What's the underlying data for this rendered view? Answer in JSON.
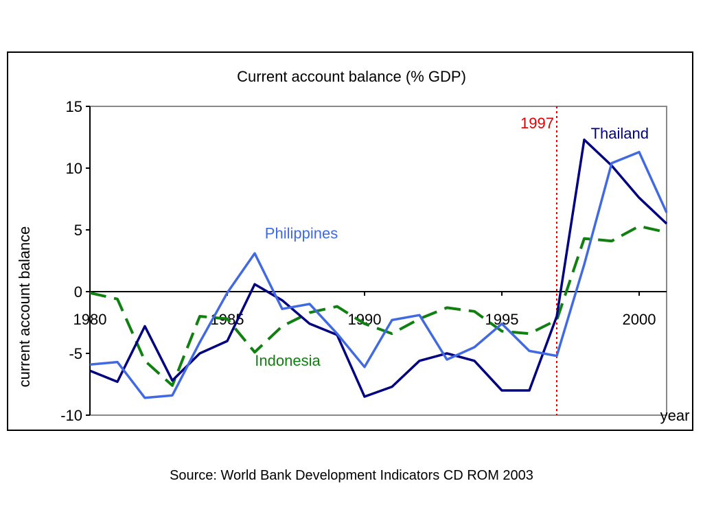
{
  "chart_data": {
    "type": "line",
    "title": "Current account balance (% GDP)",
    "xlabel": "year",
    "ylabel": "current account balance",
    "xlim": [
      1980,
      2001
    ],
    "ylim": [
      -10,
      15
    ],
    "xticks": [
      1980,
      1985,
      1990,
      1995,
      2000
    ],
    "yticks": [
      -10,
      -5,
      0,
      5,
      10,
      15
    ],
    "x": [
      1980,
      1981,
      1982,
      1983,
      1984,
      1985,
      1986,
      1987,
      1988,
      1989,
      1990,
      1991,
      1992,
      1993,
      1994,
      1995,
      1996,
      1997,
      1998,
      1999,
      2000,
      2001
    ],
    "series": [
      {
        "name": "Thailand",
        "color": "#000080",
        "dash": "solid",
        "values": [
          -6.4,
          -7.3,
          -2.8,
          -7.2,
          -5.0,
          -4.0,
          0.6,
          -0.7,
          -2.6,
          -3.5,
          -8.5,
          -7.7,
          -5.6,
          -5.0,
          -5.6,
          -8.0,
          -8.0,
          -2.0,
          12.3,
          10.2,
          7.6,
          5.5
        ]
      },
      {
        "name": "Philippines",
        "color": "#4169E1",
        "dash": "solid",
        "values": [
          -5.9,
          -5.7,
          -8.6,
          -8.4,
          -4.1,
          -0.1,
          3.1,
          -1.4,
          -1.0,
          -3.4,
          -6.1,
          -2.3,
          -1.9,
          -5.5,
          -4.5,
          -2.6,
          -4.8,
          -5.2,
          2.2,
          10.4,
          11.3,
          6.4
        ]
      },
      {
        "name": "Indonesia",
        "color": "#108010",
        "dash": "dashed",
        "values": [
          -0.1,
          -0.6,
          -5.6,
          -7.6,
          -2.0,
          -2.2,
          -4.9,
          -2.8,
          -1.7,
          -1.2,
          -2.6,
          -3.4,
          -2.2,
          -1.3,
          -1.6,
          -3.2,
          -3.4,
          -2.3,
          4.3,
          4.1,
          5.3,
          4.8
        ]
      }
    ],
    "annotation": {
      "text": "1997",
      "x": 1997,
      "color": "#e00000"
    },
    "source": "Source: World Bank Development Indicators CD ROM 2003"
  }
}
